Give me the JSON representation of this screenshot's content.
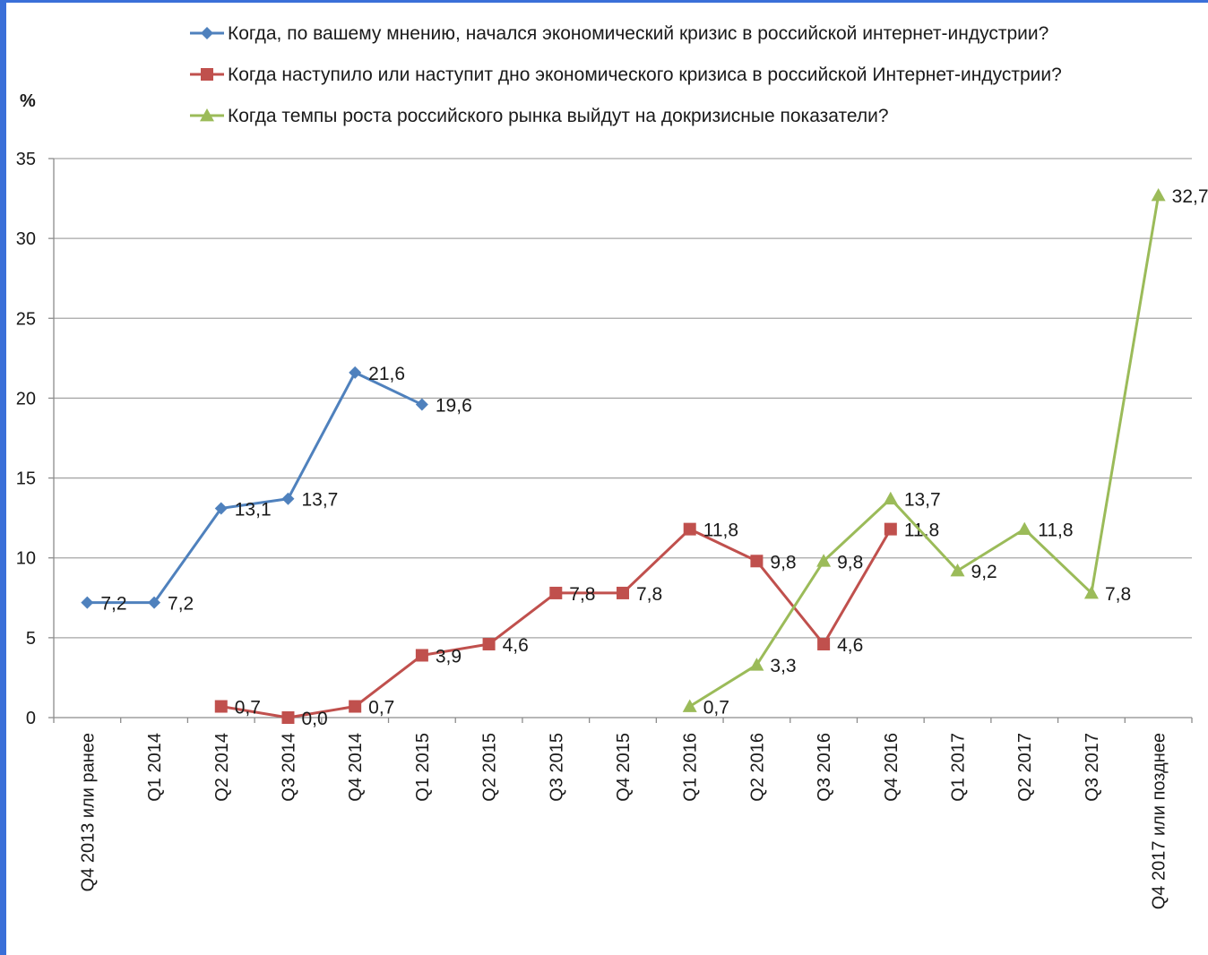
{
  "page": {
    "frame_color": "#3a6fd8"
  },
  "chart_data": {
    "type": "line",
    "ylabel": "%",
    "ylim": [
      0,
      35
    ],
    "yticks": [
      0,
      5,
      10,
      15,
      20,
      25,
      30,
      35
    ],
    "grid": true,
    "legend_position": "top",
    "categories": [
      "Q4 2013 или ранее",
      "Q1 2014",
      "Q2 2014",
      "Q3 2014",
      "Q4 2014",
      "Q1 2015",
      "Q2 2015",
      "Q3 2015",
      "Q4 2015",
      "Q1 2016",
      "Q2 2016",
      "Q3 2016",
      "Q4 2016",
      "Q1 2017",
      "Q2 2017",
      "Q3 2017",
      "Q4 2017 или позднее"
    ],
    "series": [
      {
        "name": "Когда, по вашему мнению, начался экономический кризис в российской интернет-индустрии?",
        "color": "#4f81bd",
        "marker": "diamond",
        "values": [
          7.2,
          7.2,
          13.1,
          13.7,
          21.6,
          19.6,
          null,
          null,
          null,
          null,
          null,
          null,
          null,
          null,
          null,
          null,
          null
        ],
        "labels": [
          "7,2",
          "7,2",
          "13,1",
          "13,7",
          "21,6",
          "19,6",
          null,
          null,
          null,
          null,
          null,
          null,
          null,
          null,
          null,
          null,
          null
        ]
      },
      {
        "name": "Когда наступило или наступит дно экономического кризиса в российской Интернет-индустрии?",
        "color": "#c0504d",
        "marker": "square",
        "values": [
          null,
          null,
          0.7,
          0.0,
          0.7,
          3.9,
          4.6,
          7.8,
          7.8,
          11.8,
          9.8,
          4.6,
          11.8,
          null,
          null,
          null,
          null
        ],
        "labels": [
          null,
          null,
          "0,7",
          "0,0",
          "0,7",
          "3,9",
          "4,6",
          "7,8",
          "7,8",
          "11,8",
          "9,8",
          "4,6",
          "11,8",
          null,
          null,
          null,
          null
        ]
      },
      {
        "name": "Когда темпы роста российского рынка выйдут на докризисные показатели?",
        "color": "#9bbb59",
        "marker": "triangle",
        "values": [
          null,
          null,
          null,
          null,
          null,
          null,
          null,
          null,
          null,
          0.7,
          3.3,
          9.8,
          13.7,
          9.2,
          11.8,
          7.8,
          32.7
        ],
        "labels": [
          null,
          null,
          null,
          null,
          null,
          null,
          null,
          null,
          null,
          "0,7",
          "3,3",
          "9,8",
          "13,7",
          "9,2",
          "11,8",
          "7,8",
          "32,7"
        ]
      }
    ]
  }
}
